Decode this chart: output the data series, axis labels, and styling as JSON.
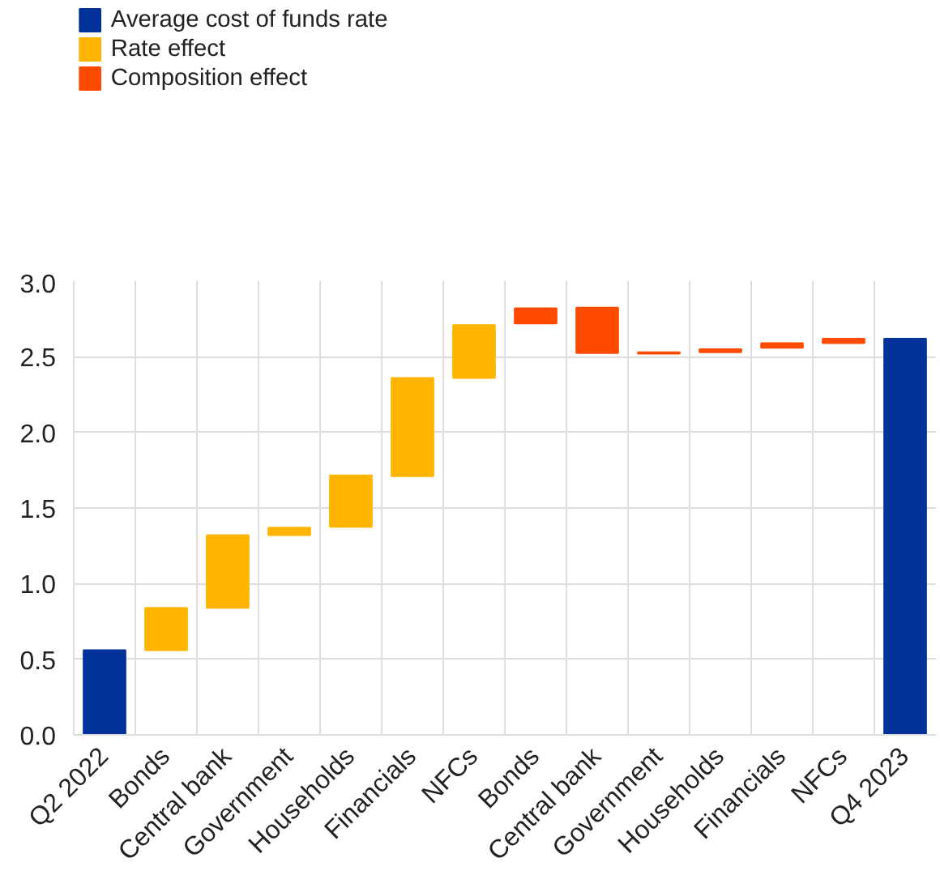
{
  "chart_data": {
    "type": "bar",
    "categories": [
      "Q2 2022",
      "Bonds",
      "Central bank",
      "Government",
      "Households",
      "Financials",
      "NFCs",
      "Bonds",
      "Central bank",
      "Government",
      "Households",
      "Financials",
      "NFCs",
      "Q4 2023"
    ],
    "series": [
      {
        "name": "Average cost of funds rate",
        "color": "#003299",
        "values": [
          0.56,
          null,
          null,
          null,
          null,
          null,
          null,
          null,
          null,
          null,
          null,
          null,
          null,
          2.62
        ],
        "base": [
          0,
          null,
          null,
          null,
          null,
          null,
          null,
          null,
          null,
          null,
          null,
          null,
          null,
          0
        ]
      },
      {
        "name": "Rate effect",
        "color": "#ffb400",
        "values": [
          null,
          0.28,
          0.48,
          0.05,
          0.34,
          0.65,
          0.35,
          null,
          null,
          null,
          null,
          null,
          null,
          null
        ],
        "base": [
          null,
          0.56,
          0.84,
          1.32,
          1.375,
          1.71,
          2.36,
          null,
          null,
          null,
          null,
          null,
          null,
          null
        ]
      },
      {
        "name": "Composition effect",
        "color": "#ff4b00",
        "values": [
          null,
          null,
          null,
          null,
          null,
          null,
          null,
          0.1,
          0.3,
          0.01,
          0.02,
          0.03,
          0.03,
          null
        ],
        "base": [
          null,
          null,
          null,
          null,
          null,
          null,
          null,
          2.72,
          2.525,
          2.52,
          2.53,
          2.56,
          2.59,
          null
        ]
      }
    ],
    "ylim": [
      0,
      3
    ],
    "yticks": [
      {
        "value": 0,
        "label": "0.0"
      },
      0.5,
      {
        "value": 1,
        "label": "1.0"
      },
      1.5,
      {
        "value": 2,
        "label": "2.0"
      },
      2.5,
      {
        "value": 3,
        "label": "3.0"
      }
    ],
    "grid": true,
    "legend": "top left"
  }
}
